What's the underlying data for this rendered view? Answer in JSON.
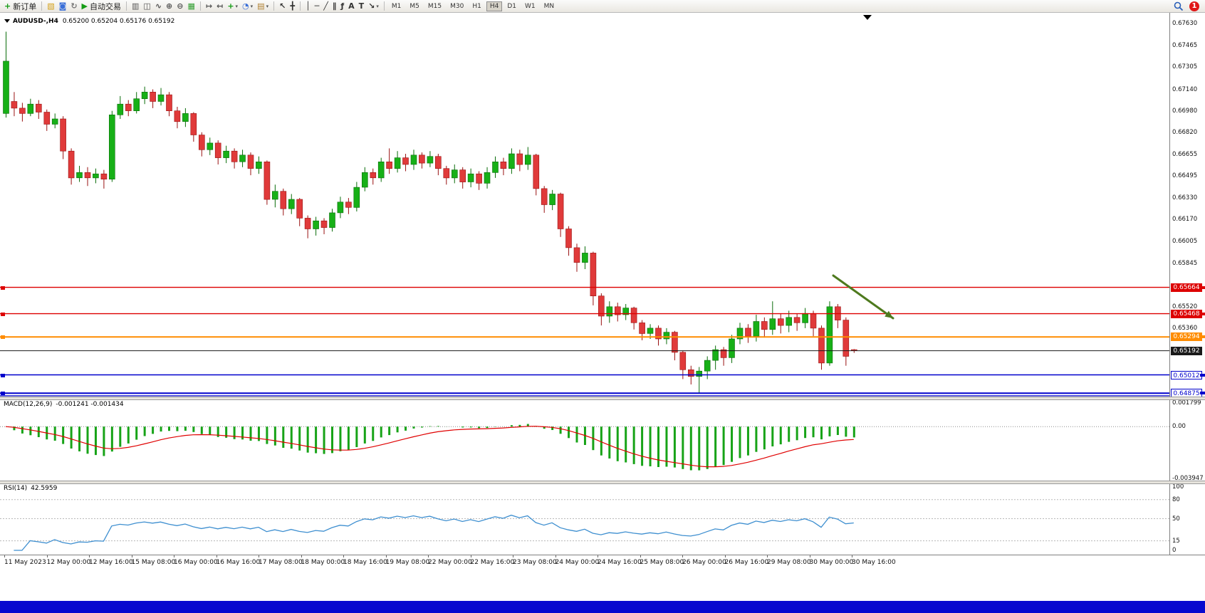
{
  "toolbar": {
    "badge": "1",
    "items": [
      {
        "type": "button",
        "name": "new-order-button",
        "glyph": "+",
        "glyph_color": "#159c15",
        "label": "新订单"
      },
      {
        "type": "separator"
      },
      {
        "type": "button",
        "name": "new-chart-button",
        "glyph": "▧",
        "glyph_color": "#d4a017"
      },
      {
        "type": "button",
        "name": "profiles-button",
        "glyph": "◙",
        "glyph_color": "#3a6fd8"
      },
      {
        "type": "button",
        "name": "refresh-button",
        "glyph": "↻",
        "glyph_color": "#777777"
      },
      {
        "type": "button",
        "name": "autotrading-button",
        "glyph": "▶",
        "glyph_color": "#159c15",
        "label": "自动交易"
      },
      {
        "type": "separator"
      },
      {
        "type": "button",
        "name": "bar-chart-button",
        "glyph": "▥",
        "glyph_color": "#555555"
      },
      {
        "type": "button",
        "name": "candlestick-chart-button",
        "glyph": "◫",
        "glyph_color": "#555555"
      },
      {
        "type": "button",
        "name": "line-chart-button",
        "glyph": "∿",
        "glyph_color": "#555555"
      },
      {
        "type": "button",
        "name": "zoom-in-button",
        "glyph": "⊕",
        "glyph_color": "#555555"
      },
      {
        "type": "button",
        "name": "zoom-out-button",
        "glyph": "⊖",
        "glyph_color": "#555555"
      },
      {
        "type": "button",
        "name": "tile-windows-button",
        "glyph": "▦",
        "glyph_color": "#2f9e2f"
      },
      {
        "type": "separator"
      },
      {
        "type": "button",
        "name": "auto-scroll-button",
        "glyph": "↦",
        "glyph_color": "#555555"
      },
      {
        "type": "button",
        "name": "chart-shift-button",
        "glyph": "↤",
        "glyph_color": "#555555"
      },
      {
        "type": "button",
        "name": "indicators-button",
        "glyph": "+",
        "glyph_color": "#159c15",
        "dropdown": true
      },
      {
        "type": "button",
        "name": "periods-button",
        "glyph": "◔",
        "glyph_color": "#3a6fd8",
        "dropdown": true
      },
      {
        "type": "button",
        "name": "templates-button",
        "glyph": "▤",
        "glyph_color": "#b08030",
        "dropdown": true
      },
      {
        "type": "separator"
      },
      {
        "type": "button",
        "name": "cursor-button",
        "glyph": "↖",
        "glyph_color": "#333333"
      },
      {
        "type": "button",
        "name": "crosshair-button",
        "glyph": "╋",
        "glyph_color": "#333333"
      },
      {
        "type": "separator"
      },
      {
        "type": "button",
        "name": "vertical-line-button",
        "glyph": "│",
        "glyph_color": "#333333"
      },
      {
        "type": "button",
        "name": "horizontal-line-button",
        "glyph": "─",
        "glyph_color": "#333333"
      },
      {
        "type": "button",
        "name": "trendline-button",
        "glyph": "╱",
        "glyph_color": "#333333"
      },
      {
        "type": "button",
        "name": "channel-button",
        "glyph": "∥",
        "glyph_color": "#333333"
      },
      {
        "type": "button",
        "name": "fibonacci-button",
        "glyph": "ƒ",
        "glyph_color": "#333333"
      },
      {
        "type": "button",
        "name": "text-button",
        "glyph": "A",
        "glyph_color": "#333333"
      },
      {
        "type": "button",
        "name": "text-label-button",
        "glyph": "T",
        "glyph_color": "#333333"
      },
      {
        "type": "button",
        "name": "arrows-button",
        "glyph": "↘",
        "glyph_color": "#333333",
        "dropdown": true
      },
      {
        "type": "separator"
      },
      {
        "type": "tf",
        "label": "M1"
      },
      {
        "type": "tf",
        "label": "M5"
      },
      {
        "type": "tf",
        "label": "M15"
      },
      {
        "type": "tf",
        "label": "M30"
      },
      {
        "type": "tf",
        "label": "H1"
      },
      {
        "type": "tf",
        "label": "H4",
        "active": true
      },
      {
        "type": "tf",
        "label": "D1"
      },
      {
        "type": "tf",
        "label": "W1"
      },
      {
        "type": "tf",
        "label": "MN"
      }
    ]
  },
  "main_chart": {
    "symbol_period": "AUDUSD-,H4",
    "ohlc_text": "0.65200 0.65204 0.65176 0.65192"
  },
  "indicators": {
    "macd": {
      "name": "MACD(12,26,9)",
      "values": "-0.001241 -0.001434",
      "params": {
        "fast": 12,
        "slow": 26,
        "signal": 9
      },
      "scale_max": 0.001799,
      "scale_min": -0.003947,
      "axis": [
        {
          "text": "0.001799",
          "value": 0.001799
        },
        {
          "text": "0.00",
          "value": 0
        },
        {
          "text": "-0.003947",
          "value": -0.003947
        }
      ]
    },
    "rsi": {
      "name": "RSI(14)",
      "value_text": "42.5959",
      "period": 14,
      "levels": [
        80,
        50,
        15
      ],
      "axis": [
        {
          "text": "100",
          "value": 100
        },
        {
          "text": "80",
          "value": 80
        },
        {
          "text": "50",
          "value": 50
        },
        {
          "text": "15",
          "value": 15
        },
        {
          "text": "0",
          "value": 0
        }
      ]
    }
  },
  "price_lines": [
    {
      "value": 0.65664,
      "text": "0.65664",
      "color": "#dd0000",
      "width": 1.4,
      "tag": "solid",
      "anchor": true
    },
    {
      "value": 0.65468,
      "text": "0.65468",
      "color": "#dd0000",
      "width": 1.4,
      "tag": "solid",
      "anchor": true
    },
    {
      "value": 0.65294,
      "text": "0.65294",
      "color": "#ff8c00",
      "width": 2,
      "tag": "solid",
      "anchor": true
    },
    {
      "value": 0.65192,
      "text": "0.65192",
      "color": "#1a1a1a",
      "width": 1,
      "tag": "solid",
      "current": true
    },
    {
      "value": 0.65012,
      "text": "0.65012",
      "color": "#0000cc",
      "width": 1.6,
      "tag": "outline",
      "anchor": true
    },
    {
      "value": 0.64875,
      "text": "0.64875",
      "color": "#0000cc",
      "width": 2,
      "tag": "outline",
      "anchor": true
    },
    {
      "value": 0.64856,
      "text": "",
      "color": "#0000cc",
      "width": 1.2
    }
  ],
  "price_axis": {
    "ticks": [
      "0.67630",
      "0.67465",
      "0.67305",
      "0.67140",
      "0.66980",
      "0.66820",
      "0.66655",
      "0.66495",
      "0.66330",
      "0.66170",
      "0.66005",
      "0.65845",
      "0.65520",
      "0.65360"
    ]
  },
  "time_axis": {
    "labels": [
      "11 May 2023",
      "12 May 00:00",
      "12 May 16:00",
      "15 May 08:00",
      "16 May 00:00",
      "16 May 16:00",
      "17 May 08:00",
      "18 May 00:00",
      "18 May 16:00",
      "19 May 08:00",
      "22 May 00:00",
      "22 May 16:00",
      "23 May 08:00",
      "24 May 00:00",
      "24 May 16:00",
      "25 May 08:00",
      "26 May 00:00",
      "26 May 16:00",
      "29 May 08:00",
      "30 May 00:00",
      "30 May 16:00"
    ]
  },
  "annotations": {
    "arrow": {
      "from": [
        1170,
        369
      ],
      "to": [
        1254,
        429
      ],
      "color": "#4e7a1e"
    }
  },
  "colors": {
    "candle_up": "#17b017",
    "candle_up_border": "#0a6d0a",
    "candle_down": "#e03a3a",
    "candle_down_border": "#991111",
    "macd_histogram": "#17a317",
    "macd_signal": "#e00000",
    "rsi_line": "#3e8fd0",
    "background": "#ffffff",
    "status_bar": "#0808cf"
  },
  "chart_data": {
    "type": "candlestick",
    "symbol": "AUDUSD-",
    "timeframe": "H4",
    "price_range": {
      "top": 0.677,
      "bottom": 0.6485
    },
    "candles": [
      [
        0.6696,
        0.6757,
        0.6693,
        0.6735
      ],
      [
        0.6705,
        0.6712,
        0.6694,
        0.67
      ],
      [
        0.67,
        0.6704,
        0.669,
        0.6696
      ],
      [
        0.6696,
        0.6707,
        0.6694,
        0.6703
      ],
      [
        0.6703,
        0.6706,
        0.6692,
        0.6697
      ],
      [
        0.6697,
        0.6699,
        0.6683,
        0.6688
      ],
      [
        0.6688,
        0.6696,
        0.6685,
        0.6692
      ],
      [
        0.6692,
        0.6694,
        0.6662,
        0.6668
      ],
      [
        0.6668,
        0.667,
        0.6643,
        0.6648
      ],
      [
        0.6648,
        0.6657,
        0.6645,
        0.6652
      ],
      [
        0.6652,
        0.6656,
        0.6642,
        0.6648
      ],
      [
        0.6648,
        0.6655,
        0.6644,
        0.6651
      ],
      [
        0.6651,
        0.6654,
        0.664,
        0.6647
      ],
      [
        0.6647,
        0.6698,
        0.6645,
        0.6695
      ],
      [
        0.6695,
        0.6709,
        0.6692,
        0.6703
      ],
      [
        0.6703,
        0.6706,
        0.6694,
        0.6698
      ],
      [
        0.6698,
        0.6712,
        0.6696,
        0.6707
      ],
      [
        0.6707,
        0.6716,
        0.6703,
        0.6712
      ],
      [
        0.6712,
        0.6714,
        0.67,
        0.6705
      ],
      [
        0.6705,
        0.6715,
        0.6702,
        0.671
      ],
      [
        0.671,
        0.6712,
        0.6694,
        0.6698
      ],
      [
        0.6698,
        0.6701,
        0.6685,
        0.669
      ],
      [
        0.669,
        0.67,
        0.6686,
        0.6696
      ],
      [
        0.6696,
        0.6697,
        0.6675,
        0.668
      ],
      [
        0.668,
        0.6682,
        0.6664,
        0.6669
      ],
      [
        0.6669,
        0.6678,
        0.6665,
        0.6674
      ],
      [
        0.6674,
        0.6676,
        0.6658,
        0.6663
      ],
      [
        0.6663,
        0.6672,
        0.6659,
        0.6668
      ],
      [
        0.6668,
        0.667,
        0.6655,
        0.666
      ],
      [
        0.666,
        0.6669,
        0.6656,
        0.6665
      ],
      [
        0.6665,
        0.6667,
        0.665,
        0.6655
      ],
      [
        0.6655,
        0.6664,
        0.6651,
        0.666
      ],
      [
        0.666,
        0.6661,
        0.6628,
        0.6632
      ],
      [
        0.6632,
        0.6643,
        0.6626,
        0.6638
      ],
      [
        0.6638,
        0.664,
        0.662,
        0.6625
      ],
      [
        0.6625,
        0.6636,
        0.6621,
        0.6632
      ],
      [
        0.6632,
        0.6633,
        0.6612,
        0.6618
      ],
      [
        0.6618,
        0.662,
        0.6603,
        0.661
      ],
      [
        0.661,
        0.6619,
        0.6605,
        0.6616
      ],
      [
        0.6616,
        0.6618,
        0.6606,
        0.6611
      ],
      [
        0.6611,
        0.6625,
        0.6608,
        0.6622
      ],
      [
        0.6622,
        0.6634,
        0.6618,
        0.663
      ],
      [
        0.663,
        0.6633,
        0.6621,
        0.6626
      ],
      [
        0.6626,
        0.6645,
        0.6623,
        0.6641
      ],
      [
        0.6641,
        0.6656,
        0.6638,
        0.6652
      ],
      [
        0.6652,
        0.6655,
        0.6643,
        0.6648
      ],
      [
        0.6648,
        0.6663,
        0.6645,
        0.666
      ],
      [
        0.666,
        0.667,
        0.6651,
        0.6655
      ],
      [
        0.6655,
        0.6668,
        0.6652,
        0.6663
      ],
      [
        0.6663,
        0.6666,
        0.6653,
        0.6658
      ],
      [
        0.6658,
        0.6669,
        0.6654,
        0.6665
      ],
      [
        0.6665,
        0.6667,
        0.6655,
        0.6659
      ],
      [
        0.6659,
        0.6668,
        0.6656,
        0.6664
      ],
      [
        0.6664,
        0.6666,
        0.665,
        0.6655
      ],
      [
        0.6655,
        0.6657,
        0.6643,
        0.6648
      ],
      [
        0.6648,
        0.6658,
        0.6644,
        0.6654
      ],
      [
        0.6654,
        0.6656,
        0.664,
        0.6645
      ],
      [
        0.6645,
        0.6655,
        0.6641,
        0.6651
      ],
      [
        0.6651,
        0.6653,
        0.6639,
        0.6644
      ],
      [
        0.6644,
        0.6656,
        0.664,
        0.6652
      ],
      [
        0.6652,
        0.6664,
        0.6648,
        0.666
      ],
      [
        0.666,
        0.6663,
        0.665,
        0.6655
      ],
      [
        0.6655,
        0.667,
        0.6651,
        0.6666
      ],
      [
        0.6666,
        0.6669,
        0.6653,
        0.6658
      ],
      [
        0.6658,
        0.6671,
        0.6654,
        0.6665
      ],
      [
        0.6665,
        0.6666,
        0.6635,
        0.664
      ],
      [
        0.664,
        0.6642,
        0.6622,
        0.6628
      ],
      [
        0.6628,
        0.6639,
        0.6624,
        0.6636
      ],
      [
        0.6636,
        0.6637,
        0.6604,
        0.661
      ],
      [
        0.661,
        0.6612,
        0.659,
        0.6596
      ],
      [
        0.6596,
        0.6599,
        0.6578,
        0.6585
      ],
      [
        0.6585,
        0.6597,
        0.658,
        0.6592
      ],
      [
        0.6592,
        0.6593,
        0.6553,
        0.656
      ],
      [
        0.656,
        0.6562,
        0.6538,
        0.6545
      ],
      [
        0.6545,
        0.6556,
        0.654,
        0.6552
      ],
      [
        0.6552,
        0.6555,
        0.6541,
        0.6546
      ],
      [
        0.6546,
        0.6554,
        0.6542,
        0.6551
      ],
      [
        0.6551,
        0.6552,
        0.6535,
        0.654
      ],
      [
        0.654,
        0.6542,
        0.6527,
        0.6532
      ],
      [
        0.6532,
        0.6539,
        0.6528,
        0.6536
      ],
      [
        0.6536,
        0.6538,
        0.6523,
        0.6528
      ],
      [
        0.6528,
        0.6536,
        0.6524,
        0.6533
      ],
      [
        0.6533,
        0.6534,
        0.6512,
        0.6518
      ],
      [
        0.6518,
        0.6519,
        0.6498,
        0.6505
      ],
      [
        0.6505,
        0.6508,
        0.6494,
        0.65
      ],
      [
        0.65,
        0.6507,
        0.64876,
        0.6504
      ],
      [
        0.6504,
        0.6515,
        0.6498,
        0.6512
      ],
      [
        0.6512,
        0.6523,
        0.6505,
        0.652
      ],
      [
        0.652,
        0.6522,
        0.6508,
        0.6514
      ],
      [
        0.6514,
        0.6531,
        0.651,
        0.6528
      ],
      [
        0.6528,
        0.654,
        0.6524,
        0.6536
      ],
      [
        0.6536,
        0.6539,
        0.6525,
        0.653
      ],
      [
        0.653,
        0.6546,
        0.6526,
        0.6541
      ],
      [
        0.6541,
        0.6544,
        0.6529,
        0.6535
      ],
      [
        0.6535,
        0.6556,
        0.6531,
        0.6543
      ],
      [
        0.6543,
        0.6547,
        0.6532,
        0.6538
      ],
      [
        0.6538,
        0.6549,
        0.6533,
        0.6544
      ],
      [
        0.6544,
        0.6547,
        0.6534,
        0.654
      ],
      [
        0.654,
        0.6551,
        0.6536,
        0.6547
      ],
      [
        0.6547,
        0.6549,
        0.653,
        0.6536
      ],
      [
        0.6536,
        0.6538,
        0.6505,
        0.651
      ],
      [
        0.651,
        0.6556,
        0.6508,
        0.6552
      ],
      [
        0.6552,
        0.6554,
        0.6536,
        0.6542
      ],
      [
        0.6542,
        0.6544,
        0.6508,
        0.6515
      ],
      [
        0.652,
        0.65204,
        0.65176,
        0.65192
      ]
    ]
  }
}
